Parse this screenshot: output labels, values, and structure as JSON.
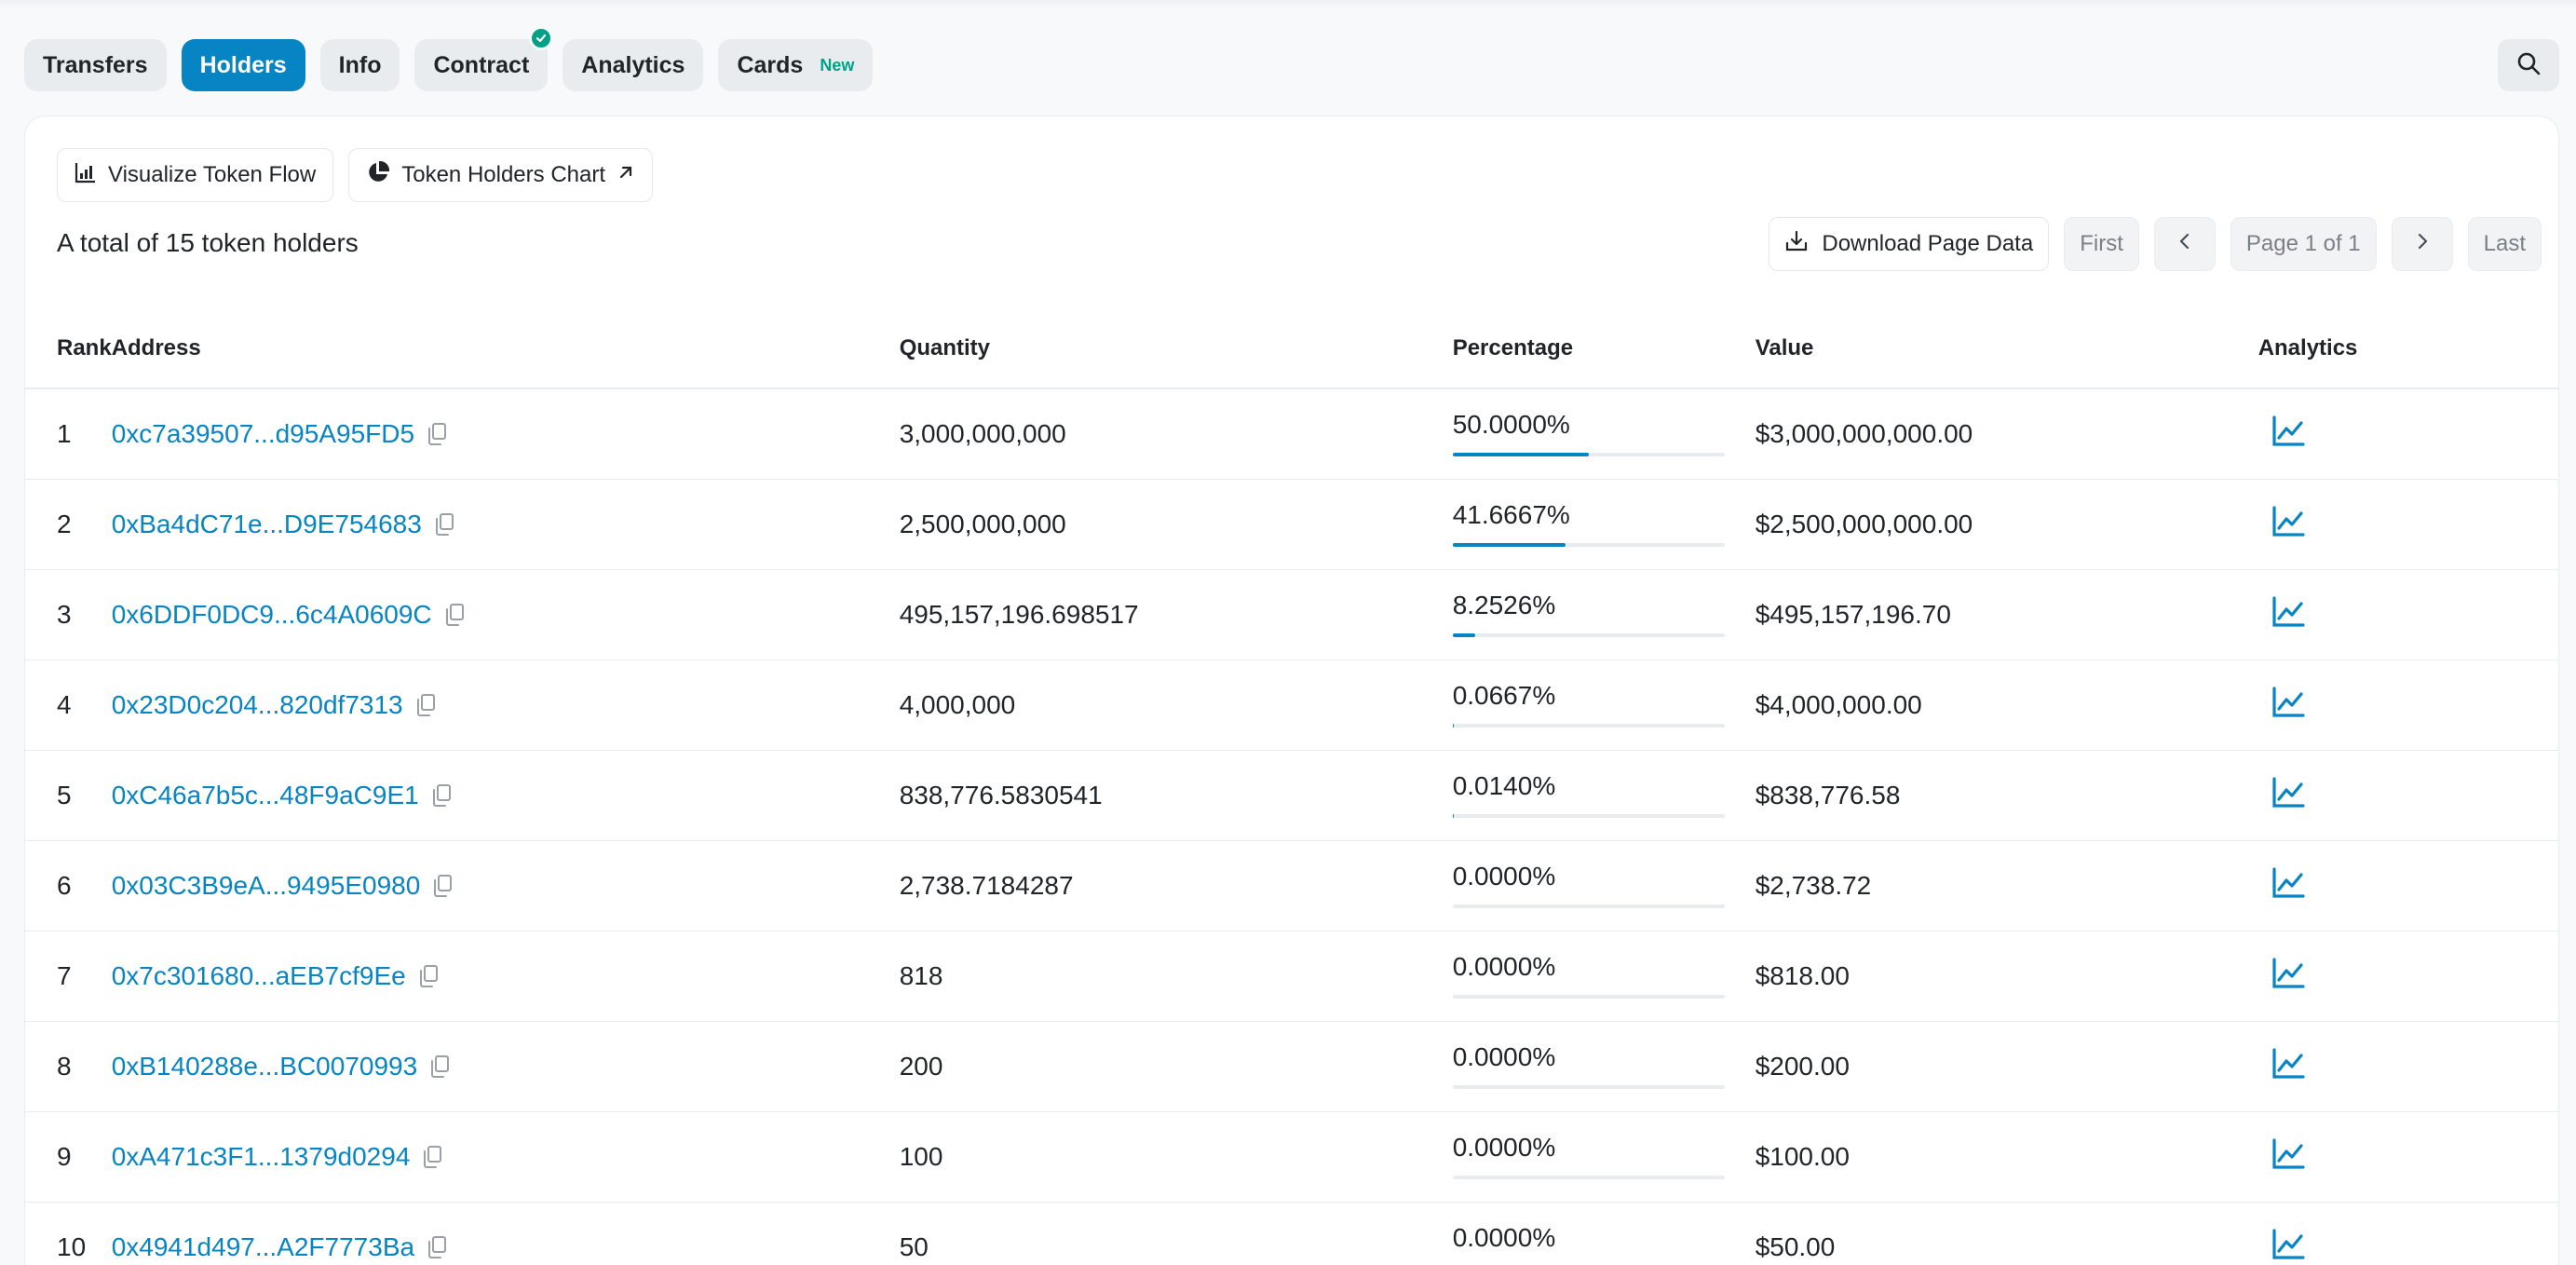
{
  "tabs": [
    {
      "label": "Transfers",
      "active": false
    },
    {
      "label": "Holders",
      "active": true
    },
    {
      "label": "Info",
      "active": false
    },
    {
      "label": "Contract",
      "active": false,
      "verified": true
    },
    {
      "label": "Analytics",
      "active": false
    },
    {
      "label": "Cards",
      "active": false,
      "badge": "New"
    }
  ],
  "toolbar": {
    "visualize_label": "Visualize Token Flow",
    "chart_label": "Token Holders Chart"
  },
  "summary": "A total of 15 token holders",
  "pager": {
    "download_label": "Download Page Data",
    "first_label": "First",
    "page_label": "Page 1 of 1",
    "last_label": "Last"
  },
  "table": {
    "headers": {
      "rank": "Rank",
      "address": "Address",
      "quantity": "Quantity",
      "percentage": "Percentage",
      "value": "Value",
      "analytics": "Analytics"
    },
    "rows": [
      {
        "rank": "1",
        "address": "0xc7a39507...d95A95FD5",
        "quantity": "3,000,000,000",
        "percentage": "50.0000%",
        "pct": 0.5,
        "value": "$3,000,000,000.00"
      },
      {
        "rank": "2",
        "address": "0xBa4dC71e...D9E754683",
        "quantity": "2,500,000,000",
        "percentage": "41.6667%",
        "pct": 0.416667,
        "value": "$2,500,000,000.00"
      },
      {
        "rank": "3",
        "address": "0x6DDF0DC9...6c4A0609C",
        "quantity": "495,157,196.698517",
        "percentage": "8.2526%",
        "pct": 0.082526,
        "value": "$495,157,196.70"
      },
      {
        "rank": "4",
        "address": "0x23D0c204...820df7313",
        "quantity": "4,000,000",
        "percentage": "0.0667%",
        "pct": 0.000667,
        "value": "$4,000,000.00"
      },
      {
        "rank": "5",
        "address": "0xC46a7b5c...48F9aC9E1",
        "quantity": "838,776.5830541",
        "percentage": "0.0140%",
        "pct": 0.00014,
        "value": "$838,776.58"
      },
      {
        "rank": "6",
        "address": "0x03C3B9eA...9495E0980",
        "quantity": "2,738.7184287",
        "percentage": "0.0000%",
        "pct": 0,
        "value": "$2,738.72"
      },
      {
        "rank": "7",
        "address": "0x7c301680...aEB7cf9Ee",
        "quantity": "818",
        "percentage": "0.0000%",
        "pct": 0,
        "value": "$818.00"
      },
      {
        "rank": "8",
        "address": "0xB140288e...BC0070993",
        "quantity": "200",
        "percentage": "0.0000%",
        "pct": 0,
        "value": "$200.00"
      },
      {
        "rank": "9",
        "address": "0xA471c3F1...1379d0294",
        "quantity": "100",
        "percentage": "0.0000%",
        "pct": 0,
        "value": "$100.00"
      },
      {
        "rank": "10",
        "address": "0x4941d497...A2F7773Ba",
        "quantity": "50",
        "percentage": "0.0000%",
        "pct": 0,
        "value": "$50.00"
      }
    ]
  },
  "colors": {
    "accent": "#0784c3",
    "verified": "#00a186",
    "tab_bg": "#e9ecef"
  },
  "icons": {
    "visualize": "bar-chart-icon",
    "chart": "pie-chart-icon",
    "external": "arrow-up-right-icon",
    "download": "download-icon",
    "prev": "chevron-left-icon",
    "next": "chevron-right-icon",
    "search": "search-icon",
    "copy": "copy-icon",
    "analytics": "line-chart-icon",
    "verified": "check-circle-icon"
  }
}
